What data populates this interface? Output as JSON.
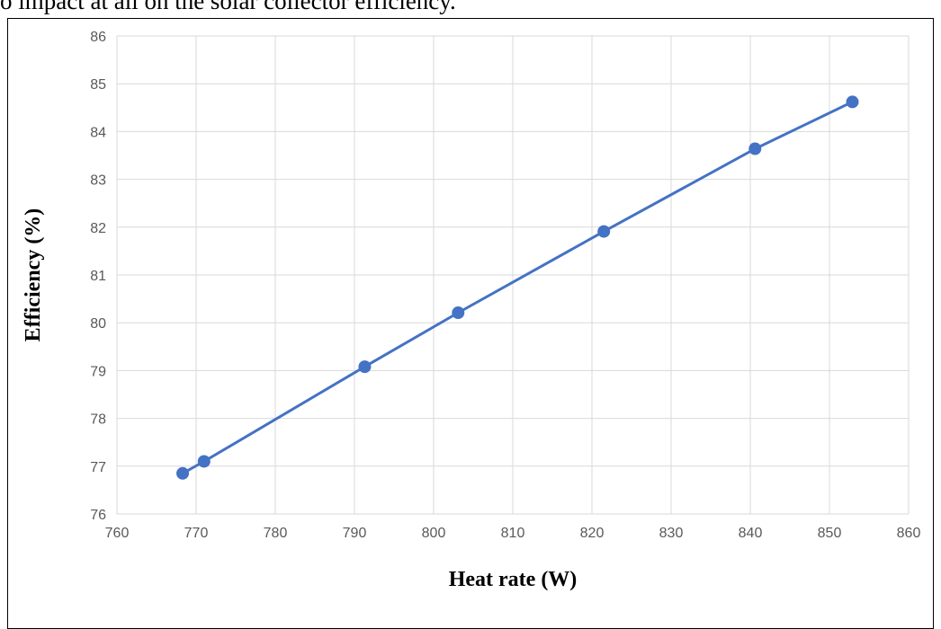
{
  "context": {
    "top_text": "o impact at all on the solar collector efficiency."
  },
  "chart_data": {
    "type": "line",
    "title": "",
    "xlabel": "Heat rate (W)",
    "ylabel": "Efficiency (%)",
    "xlim": [
      760,
      860
    ],
    "ylim": [
      76,
      86
    ],
    "x_ticks": [
      760,
      770,
      780,
      790,
      800,
      810,
      820,
      830,
      840,
      850,
      860
    ],
    "y_ticks": [
      76,
      77,
      78,
      79,
      80,
      81,
      82,
      83,
      84,
      85,
      86
    ],
    "grid": true,
    "series": [
      {
        "color": "#4472C4",
        "marker": "circle",
        "x": [
          768.3,
          771.0,
          791.3,
          803.1,
          821.5,
          840.6,
          852.9
        ],
        "y": [
          76.85,
          77.1,
          79.08,
          80.21,
          81.91,
          83.64,
          84.62
        ]
      }
    ]
  }
}
